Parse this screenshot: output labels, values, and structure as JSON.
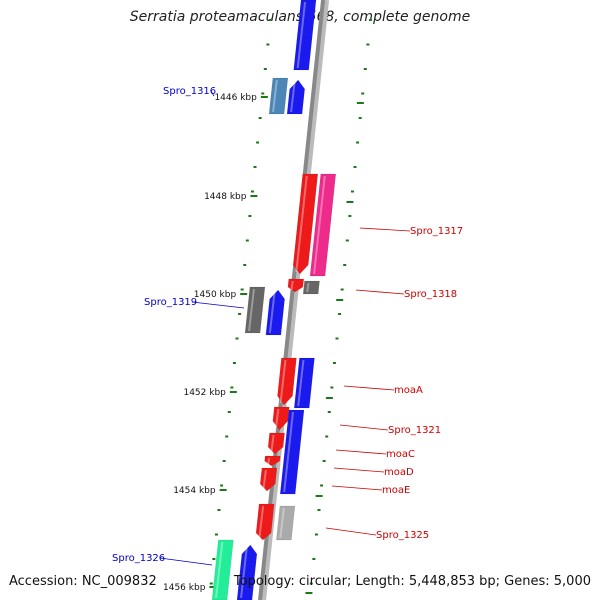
{
  "title": "Serratia proteamaculans 568, complete genome",
  "footer": {
    "accession": "Accession: NC_009832",
    "summary": "Topology: circular; Length: 5,448,853 bp; Genes: 5,000"
  },
  "ticks": [
    {
      "label": "1446 kbp"
    },
    {
      "label": "1448 kbp"
    },
    {
      "label": "1450 kbp"
    },
    {
      "label": "1452 kbp"
    },
    {
      "label": "1454 kbp"
    },
    {
      "label": "1456 kbp"
    }
  ],
  "genes": [
    {
      "name": "",
      "strand": "forward",
      "color": "#1a1aee"
    },
    {
      "name": "Spro_1316",
      "strand": "forward",
      "color": "#4b86b6"
    },
    {
      "name": "",
      "strand": "forward",
      "color": "#1a1aee"
    },
    {
      "name": "",
      "strand": "reverse",
      "color": "#ee1a1a"
    },
    {
      "name": "Spro_1317",
      "strand": "reverse",
      "color": "#ee2a8a"
    },
    {
      "name": "Spro_1318",
      "strand": "reverse",
      "color": "#ee1a1a"
    },
    {
      "name": "",
      "strand": "reverse",
      "color": "#666666"
    },
    {
      "name": "Spro_1319",
      "strand": "forward",
      "color": "#666666"
    },
    {
      "name": "",
      "strand": "forward",
      "color": "#1a1aee"
    },
    {
      "name": "moaA",
      "strand": "reverse",
      "color": "#1a1aee"
    },
    {
      "name": "",
      "strand": "reverse",
      "color": "#ee1a1a"
    },
    {
      "name": "Spro_1321",
      "strand": "reverse",
      "color": "#ee1a1a"
    },
    {
      "name": "moaC",
      "strand": "reverse",
      "color": "#ee1a1a"
    },
    {
      "name": "moaD",
      "strand": "reverse",
      "color": "#ee1a1a"
    },
    {
      "name": "moaE",
      "strand": "reverse",
      "color": "#ee1a1a"
    },
    {
      "name": "",
      "strand": "reverse",
      "color": "#1a1aee"
    },
    {
      "name": "Spro_1325",
      "strand": "reverse",
      "color": "#aaaaaa"
    },
    {
      "name": "",
      "strand": "reverse",
      "color": "#ee1a1a"
    },
    {
      "name": "Spro_1326",
      "strand": "forward",
      "color": "#22ee99"
    },
    {
      "name": "",
      "strand": "forward",
      "color": "#1a1aee"
    }
  ],
  "colors": {
    "forward_label": "#0000cc",
    "reverse_label": "#cc0000",
    "backbone": "#888888",
    "tick": "#1a7a1a"
  }
}
